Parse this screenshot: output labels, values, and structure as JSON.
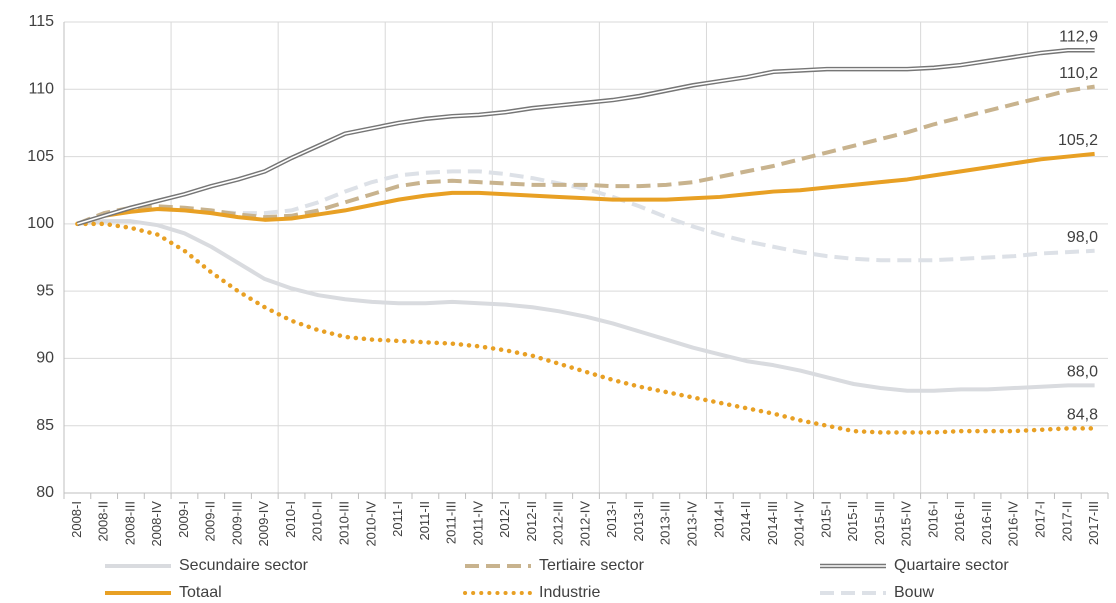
{
  "chart_data": {
    "type": "line",
    "categories": [
      "2008-I",
      "2008-II",
      "2008-III",
      "2008-IV",
      "2009-I",
      "2009-II",
      "2009-III",
      "2009-IV",
      "2010-I",
      "2010-II",
      "2010-III",
      "2010-IV",
      "2011-I",
      "2011-II",
      "2011-III",
      "2011-IV",
      "2012-I",
      "2012-II",
      "2012-III",
      "2012-IV",
      "2013-I",
      "2013-II",
      "2013-III",
      "2013-IV",
      "2014-I",
      "2014-II",
      "2014-III",
      "2014-IV",
      "2015-I",
      "2015-II",
      "2015-III",
      "2015-IV",
      "2016-I",
      "2016-II",
      "2016-III",
      "2016-IV",
      "2017-I",
      "2017-II",
      "2017-III"
    ],
    "series": [
      {
        "name": "Secundaire sector",
        "color": "#d9dbdf",
        "style": "solid",
        "values": [
          100,
          100.2,
          100.2,
          99.9,
          99.3,
          98.3,
          97.1,
          95.9,
          95.2,
          94.7,
          94.4,
          94.2,
          94.1,
          94.1,
          94.2,
          94.1,
          94.0,
          93.8,
          93.5,
          93.1,
          92.6,
          92.0,
          91.4,
          90.8,
          90.3,
          89.8,
          89.5,
          89.1,
          88.6,
          88.1,
          87.8,
          87.6,
          87.6,
          87.7,
          87.7,
          87.8,
          87.9,
          88.0,
          88.0
        ],
        "value_labels": [
          null,
          null,
          null,
          null,
          null,
          null,
          null,
          null,
          null,
          null,
          null,
          null,
          null,
          null,
          null,
          null,
          null,
          null,
          null,
          null,
          null,
          null,
          null,
          null,
          null,
          null,
          null,
          null,
          null,
          null,
          null,
          null,
          null,
          null,
          null,
          null,
          null,
          null,
          "88,0"
        ]
      },
      {
        "name": "Tertiaire sector",
        "color": "#c8b38e",
        "style": "dashed",
        "values": [
          100,
          100.8,
          101.2,
          101.3,
          101.2,
          101.0,
          100.7,
          100.5,
          100.6,
          101.0,
          101.6,
          102.2,
          102.8,
          103.1,
          103.2,
          103.1,
          103.0,
          102.9,
          102.9,
          102.9,
          102.8,
          102.8,
          102.9,
          103.1,
          103.5,
          103.9,
          104.3,
          104.8,
          105.3,
          105.8,
          106.3,
          106.8,
          107.4,
          107.9,
          108.4,
          108.9,
          109.4,
          109.9,
          110.2
        ],
        "value_labels": [
          null,
          null,
          null,
          null,
          null,
          null,
          null,
          null,
          null,
          null,
          null,
          null,
          null,
          null,
          null,
          null,
          null,
          null,
          null,
          null,
          null,
          null,
          null,
          null,
          null,
          null,
          null,
          null,
          null,
          null,
          null,
          null,
          null,
          null,
          null,
          null,
          null,
          null,
          "110,2"
        ]
      },
      {
        "name": "Quartaire sector",
        "color": "#767676",
        "style": "double",
        "values": [
          100,
          100.6,
          101.2,
          101.7,
          102.2,
          102.8,
          103.3,
          103.9,
          104.9,
          105.8,
          106.7,
          107.1,
          107.5,
          107.8,
          108.0,
          108.1,
          108.3,
          108.6,
          108.8,
          109.0,
          109.2,
          109.5,
          109.9,
          110.3,
          110.6,
          110.9,
          111.3,
          111.4,
          111.5,
          111.5,
          111.5,
          111.5,
          111.6,
          111.8,
          112.1,
          112.4,
          112.7,
          112.9,
          112.9
        ],
        "value_labels": [
          null,
          null,
          null,
          null,
          null,
          null,
          null,
          null,
          null,
          null,
          null,
          null,
          null,
          null,
          null,
          null,
          null,
          null,
          null,
          null,
          null,
          null,
          null,
          null,
          null,
          null,
          null,
          null,
          null,
          null,
          null,
          null,
          null,
          null,
          null,
          null,
          null,
          null,
          "112,9"
        ]
      },
      {
        "name": "Totaal",
        "color": "#e8a024",
        "style": "solid",
        "values": [
          100,
          100.6,
          100.9,
          101.1,
          101.0,
          100.8,
          100.5,
          100.3,
          100.4,
          100.7,
          101.0,
          101.4,
          101.8,
          102.1,
          102.3,
          102.3,
          102.2,
          102.1,
          102.0,
          101.9,
          101.8,
          101.8,
          101.8,
          101.9,
          102.0,
          102.2,
          102.4,
          102.5,
          102.7,
          102.9,
          103.1,
          103.3,
          103.6,
          103.9,
          104.2,
          104.5,
          104.8,
          105.0,
          105.2
        ],
        "value_labels": [
          null,
          null,
          null,
          null,
          null,
          null,
          null,
          null,
          null,
          null,
          null,
          null,
          null,
          null,
          null,
          null,
          null,
          null,
          null,
          null,
          null,
          null,
          null,
          null,
          null,
          null,
          null,
          null,
          null,
          null,
          null,
          null,
          null,
          null,
          null,
          null,
          null,
          null,
          "105,2"
        ]
      },
      {
        "name": "Industrie",
        "color": "#e8a024",
        "style": "dotted",
        "values": [
          100,
          100.0,
          99.7,
          99.2,
          98.0,
          96.4,
          95.0,
          93.8,
          92.8,
          92.1,
          91.6,
          91.4,
          91.3,
          91.2,
          91.1,
          90.9,
          90.6,
          90.2,
          89.6,
          89.0,
          88.4,
          87.9,
          87.5,
          87.1,
          86.7,
          86.3,
          85.9,
          85.4,
          85.0,
          84.6,
          84.5,
          84.5,
          84.5,
          84.6,
          84.6,
          84.6,
          84.7,
          84.8,
          84.8
        ],
        "value_labels": [
          null,
          null,
          null,
          null,
          null,
          null,
          null,
          null,
          null,
          null,
          null,
          null,
          null,
          null,
          null,
          null,
          null,
          null,
          null,
          null,
          null,
          null,
          null,
          null,
          null,
          null,
          null,
          null,
          null,
          null,
          null,
          null,
          null,
          null,
          null,
          null,
          null,
          null,
          "84,8"
        ]
      },
      {
        "name": "Bouw",
        "color": "#dde1e7",
        "style": "dashed",
        "values": [
          100,
          100.8,
          101.1,
          101.1,
          101.0,
          100.9,
          100.8,
          100.8,
          101.0,
          101.6,
          102.4,
          103.1,
          103.6,
          103.8,
          103.9,
          103.9,
          103.7,
          103.4,
          103.0,
          102.6,
          102.0,
          101.3,
          100.5,
          99.8,
          99.2,
          98.7,
          98.3,
          97.9,
          97.6,
          97.4,
          97.3,
          97.3,
          97.3,
          97.4,
          97.5,
          97.6,
          97.8,
          97.9,
          98.0
        ],
        "value_labels": [
          null,
          null,
          null,
          null,
          null,
          null,
          null,
          null,
          null,
          null,
          null,
          null,
          null,
          null,
          null,
          null,
          null,
          null,
          null,
          null,
          null,
          null,
          null,
          null,
          null,
          null,
          null,
          null,
          null,
          null,
          null,
          null,
          null,
          null,
          null,
          null,
          null,
          null,
          "98,0"
        ]
      }
    ],
    "ylim": [
      80,
      115
    ],
    "yticks": [
      80,
      85,
      90,
      95,
      100,
      105,
      110,
      115
    ],
    "grid": true
  }
}
